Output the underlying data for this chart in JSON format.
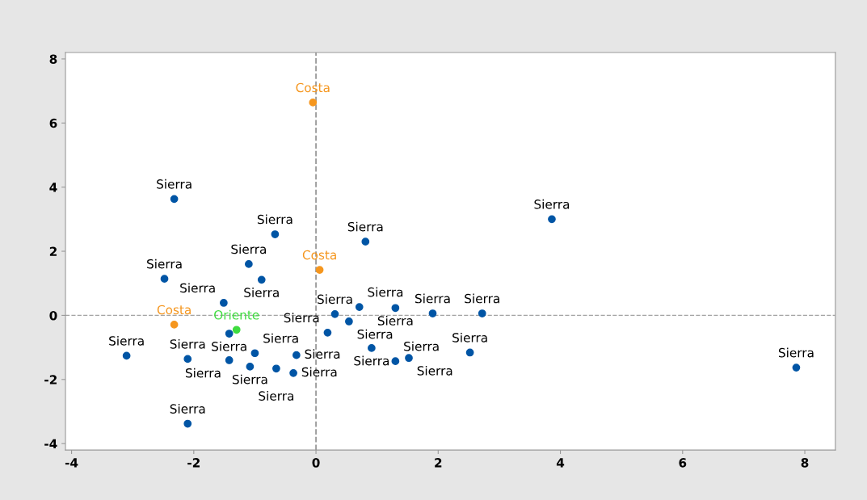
{
  "chart_data": {
    "type": "scatter",
    "xlim": [
      -4.1,
      8.5
    ],
    "ylim": [
      -4.2,
      8.2
    ],
    "xticks": [
      -4,
      -2,
      0,
      2,
      4,
      6,
      8
    ],
    "yticks": [
      -4,
      -2,
      0,
      2,
      4,
      6,
      8
    ],
    "grid": false,
    "legend": false,
    "marker": "circle",
    "series": [
      {
        "name": "Sierra",
        "color": "#0055a5",
        "x": [
          -2.48,
          -0.89,
          -1.51,
          -1.42,
          -3.1,
          -2.1,
          -1.42,
          -1.0,
          -0.32,
          -1.08,
          -0.65,
          -0.37,
          -2.1,
          0.31,
          0.71,
          1.3,
          1.91,
          2.72,
          0.54,
          0.19,
          0.91,
          1.3,
          1.52,
          2.52,
          -2.32,
          -0.67,
          0.81,
          3.86,
          -1.1,
          7.86
        ],
        "values": [
          1.14,
          1.11,
          0.39,
          -0.57,
          -1.26,
          -1.36,
          -1.4,
          -1.18,
          -1.24,
          -1.6,
          -1.66,
          -1.8,
          -3.38,
          0.04,
          0.26,
          0.23,
          0.06,
          0.06,
          -0.19,
          -0.54,
          -1.02,
          -1.43,
          -1.33,
          -1.16,
          3.63,
          2.53,
          2.3,
          3.0,
          1.6,
          -1.63
        ]
      },
      {
        "name": "Costa",
        "color": "#f5961e",
        "x": [
          -2.32,
          -0.05,
          0.06
        ],
        "values": [
          -0.29,
          6.64,
          1.42
        ]
      },
      {
        "name": "Oriente",
        "color": "#3fdc3f",
        "x": [
          -1.3
        ],
        "values": [
          -0.45
        ]
      }
    ],
    "ref_lines": [
      {
        "axis": "x",
        "value": 0,
        "color": "#999999",
        "line_style": "dashed"
      },
      {
        "axis": "y",
        "value": 0,
        "color": "#a3a3a3",
        "line_style": "dashed"
      }
    ]
  }
}
